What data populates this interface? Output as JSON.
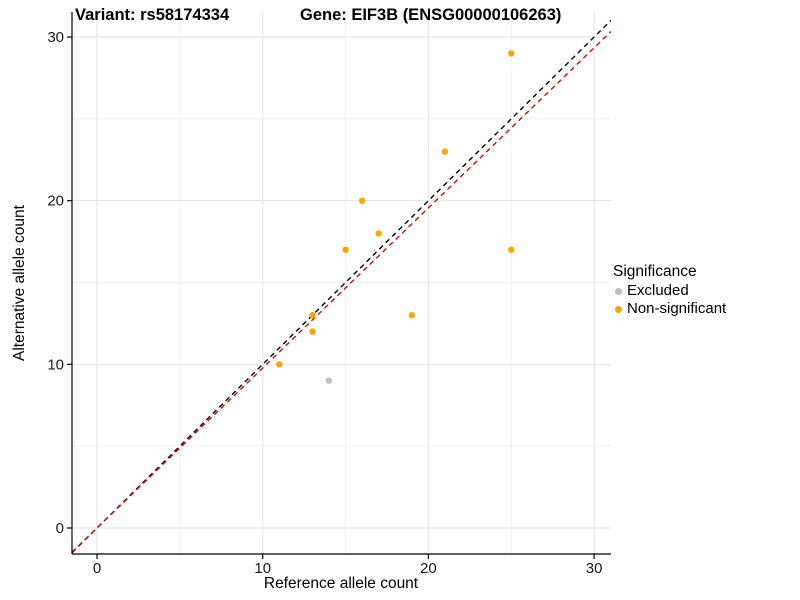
{
  "title_left": "Variant: rs58174334",
  "title_right": "Gene: EIF3B (ENSG00000106263)",
  "chart_data": {
    "type": "scatter",
    "title": "Variant: rs58174334 / Gene: EIF3B (ENSG00000106263)",
    "xlabel": "Reference allele count",
    "ylabel": "Alternative allele count",
    "xlim": [
      -1.51,
      31.02
    ],
    "ylim": [
      -1.59,
      31.53
    ],
    "xticks": [
      0,
      10,
      20,
      30
    ],
    "yticks": [
      0,
      10,
      20,
      30
    ],
    "minor_xticks": [
      5,
      15,
      25
    ],
    "minor_yticks": [
      5,
      15,
      25
    ],
    "grid": true,
    "colors": {
      "excluded": "#BEBEBE",
      "non_significant": "#FFA500",
      "identity_line": "#000000",
      "expected_line": "#EE0000",
      "major_grid": "#E2E2E2",
      "minor_grid": "#F1F1F1",
      "axis": "#000000"
    },
    "series": [
      {
        "name": "Excluded",
        "color": "#BEBEBE",
        "points": [
          [
            14,
            9
          ]
        ]
      },
      {
        "name": "Non-significant",
        "color": "#FFA500",
        "points": [
          [
            11,
            10
          ],
          [
            13,
            12
          ],
          [
            13,
            13
          ],
          [
            15,
            17
          ],
          [
            16,
            20
          ],
          [
            17,
            18
          ],
          [
            19,
            13
          ],
          [
            21,
            23
          ],
          [
            25,
            17
          ],
          [
            25,
            29
          ]
        ]
      }
    ],
    "lines": [
      {
        "name": "identity-line",
        "color": "#000000",
        "slope": 1,
        "intercept": 0,
        "style": "dashed"
      },
      {
        "name": "expected-ratio-line",
        "color": "#EE0000",
        "slope": 0.978,
        "intercept": 0,
        "style": "dashed"
      }
    ],
    "legend": {
      "title": "Significance",
      "position": "right",
      "items": [
        {
          "label": "Excluded",
          "color": "#BEBEBE"
        },
        {
          "label": "Non-significant",
          "color": "#FFA500"
        }
      ]
    }
  }
}
